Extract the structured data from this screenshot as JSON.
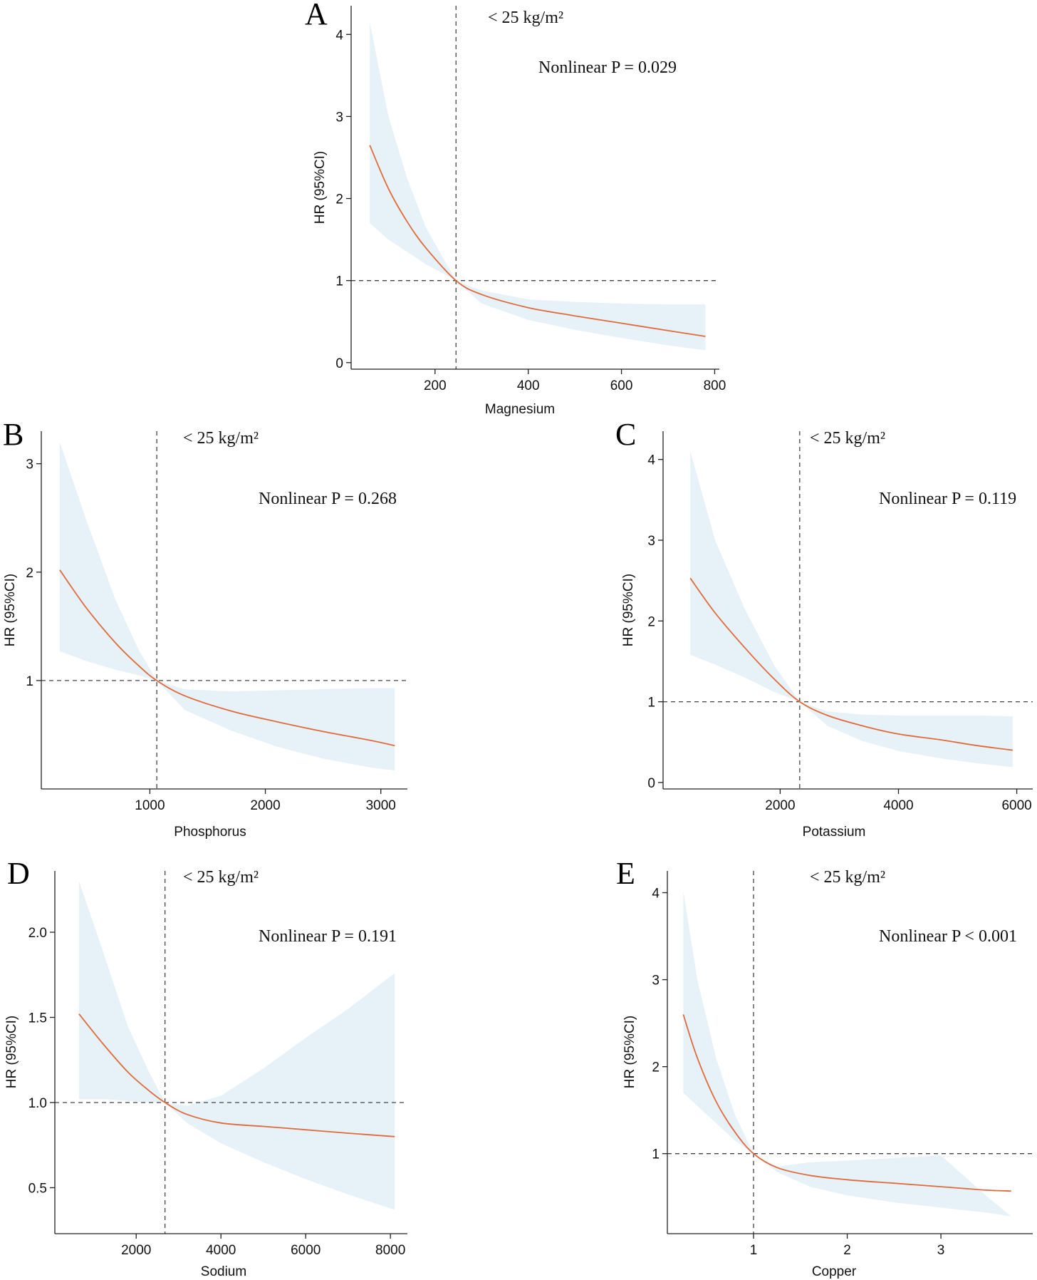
{
  "colors": {
    "band": "#e6f2f8",
    "curve": "#e06a3c",
    "axis": "#222222",
    "ref_line": "#444444"
  },
  "chart_data": [
    {
      "type": "line",
      "panel": "A",
      "annotation_bmi": "< 25 kg/m²",
      "annotation_p": "Nonlinear P = 0.029",
      "xlabel": "Magnesium",
      "ylabel": "HR (95%CI)",
      "xlim": [
        20,
        810
      ],
      "ylim": [
        -0.08,
        4.35
      ],
      "xticks": [
        200,
        400,
        600,
        800
      ],
      "xtick_labels": [
        "200",
        "400",
        "600",
        "800"
      ],
      "yticks": [
        0,
        1,
        2,
        3,
        4
      ],
      "ytick_labels": [
        "0",
        "1",
        "2",
        "3",
        "4"
      ],
      "reference_x": 245,
      "reference_y": 1,
      "series": [
        {
          "x": [
            60,
            100,
            140,
            180,
            245,
            300,
            400,
            500,
            600,
            700,
            780
          ],
          "hr": [
            2.65,
            2.12,
            1.72,
            1.4,
            1.0,
            0.83,
            0.67,
            0.57,
            0.48,
            0.39,
            0.32
          ],
          "lower": [
            1.7,
            1.5,
            1.35,
            1.2,
            1.0,
            0.72,
            0.52,
            0.4,
            0.3,
            0.21,
            0.15
          ],
          "upper": [
            4.15,
            3.0,
            2.25,
            1.65,
            1.0,
            0.88,
            0.77,
            0.74,
            0.72,
            0.71,
            0.71
          ]
        }
      ]
    },
    {
      "type": "line",
      "panel": "B",
      "annotation_bmi": "< 25 kg/m²",
      "annotation_p": "Nonlinear P = 0.268",
      "xlabel": "Phosphorus",
      "ylabel": "HR (95%CI)",
      "xlim": [
        60,
        3230
      ],
      "ylim": [
        0.0,
        3.3
      ],
      "xticks": [
        1000,
        2000,
        3000
      ],
      "xtick_labels": [
        "1000",
        "2000",
        "3000"
      ],
      "yticks": [
        1,
        2,
        3
      ],
      "ytick_labels": [
        "1",
        "2",
        "3"
      ],
      "reference_x": 1060,
      "reference_y": 1,
      "series": [
        {
          "x": [
            220,
            450,
            700,
            900,
            1060,
            1300,
            1700,
            2100,
            2500,
            2900,
            3120
          ],
          "hr": [
            2.02,
            1.67,
            1.35,
            1.14,
            1.0,
            0.86,
            0.72,
            0.62,
            0.53,
            0.45,
            0.4
          ],
          "lower": [
            1.27,
            1.18,
            1.1,
            1.05,
            1.0,
            0.73,
            0.54,
            0.39,
            0.28,
            0.2,
            0.17
          ],
          "upper": [
            3.2,
            2.48,
            1.75,
            1.29,
            1.0,
            0.92,
            0.9,
            0.91,
            0.92,
            0.93,
            0.93
          ]
        }
      ]
    },
    {
      "type": "line",
      "panel": "C",
      "annotation_bmi": "< 25 kg/m²",
      "annotation_p": "Nonlinear P = 0.119",
      "xlabel": "Potassium",
      "ylabel": "HR (95%CI)",
      "xlim": [
        20,
        6270
      ],
      "ylim": [
        -0.08,
        4.35
      ],
      "xticks": [
        2000,
        4000,
        6000
      ],
      "xtick_labels": [
        "2000",
        "4000",
        "6000"
      ],
      "yticks": [
        0,
        1,
        2,
        3,
        4
      ],
      "ytick_labels": [
        "0",
        "1",
        "2",
        "3",
        "4"
      ],
      "reference_x": 2330,
      "reference_y": 1,
      "series": [
        {
          "x": [
            480,
            900,
            1400,
            1900,
            2330,
            2800,
            3400,
            4000,
            4700,
            5300,
            5930
          ],
          "hr": [
            2.53,
            2.1,
            1.67,
            1.28,
            1.0,
            0.83,
            0.7,
            0.6,
            0.53,
            0.46,
            0.4
          ],
          "lower": [
            1.58,
            1.46,
            1.3,
            1.12,
            1.0,
            0.7,
            0.51,
            0.39,
            0.3,
            0.24,
            0.19
          ],
          "upper": [
            4.1,
            3.0,
            2.15,
            1.45,
            1.0,
            0.88,
            0.84,
            0.83,
            0.83,
            0.83,
            0.82
          ]
        }
      ]
    },
    {
      "type": "line",
      "panel": "D",
      "annotation_bmi": "< 25 kg/m²",
      "annotation_p": "Nonlinear P = 0.191",
      "xlabel": "Sodium",
      "ylabel": "HR (95%CI)",
      "xlim": [
        80,
        8400
      ],
      "ylim": [
        0.23,
        2.36
      ],
      "xticks": [
        2000,
        4000,
        6000,
        8000
      ],
      "xtick_labels": [
        "2000",
        "4000",
        "6000",
        "8000"
      ],
      "yticks": [
        0.5,
        1.0,
        1.5,
        2.0
      ],
      "ytick_labels": [
        "0.5",
        "1.0",
        "1.5",
        "2.0"
      ],
      "reference_x": 2680,
      "reference_y": 1.0,
      "series": [
        {
          "x": [
            650,
            1200,
            1800,
            2300,
            2680,
            3200,
            4000,
            5000,
            6000,
            7000,
            8100
          ],
          "hr": [
            1.52,
            1.35,
            1.18,
            1.07,
            1.0,
            0.93,
            0.88,
            0.86,
            0.84,
            0.82,
            0.8
          ],
          "lower": [
            1.02,
            1.02,
            1.01,
            1.0,
            1.0,
            0.88,
            0.76,
            0.65,
            0.55,
            0.46,
            0.37
          ],
          "upper": [
            2.3,
            1.9,
            1.45,
            1.18,
            1.0,
            0.98,
            1.04,
            1.2,
            1.38,
            1.55,
            1.76
          ]
        }
      ]
    },
    {
      "type": "line",
      "panel": "E",
      "annotation_bmi": "< 25 kg/m²",
      "annotation_p": "Nonlinear P < 0.001",
      "xlabel": "Copper",
      "ylabel": "HR (95%CI)",
      "xlim": [
        0.08,
        3.98
      ],
      "ylim": [
        0.08,
        4.25
      ],
      "xticks": [
        1,
        2,
        3
      ],
      "xtick_labels": [
        "1",
        "2",
        "3"
      ],
      "yticks": [
        1,
        2,
        3,
        4
      ],
      "ytick_labels": [
        "1",
        "2",
        "3",
        "4"
      ],
      "reference_x": 1.0,
      "reference_y": 1,
      "series": [
        {
          "x": [
            0.25,
            0.4,
            0.6,
            0.8,
            1.0,
            1.25,
            1.6,
            2.0,
            2.5,
            3.0,
            3.5,
            3.75
          ],
          "hr": [
            2.6,
            2.1,
            1.6,
            1.25,
            1.0,
            0.84,
            0.75,
            0.7,
            0.66,
            0.62,
            0.58,
            0.57
          ],
          "lower": [
            1.7,
            1.55,
            1.35,
            1.15,
            1.0,
            0.79,
            0.62,
            0.52,
            0.44,
            0.38,
            0.32,
            0.28
          ],
          "upper": [
            4.02,
            3.0,
            2.1,
            1.45,
            1.0,
            0.85,
            0.9,
            0.92,
            0.95,
            0.98,
            0.5,
            0.28
          ]
        }
      ]
    }
  ]
}
